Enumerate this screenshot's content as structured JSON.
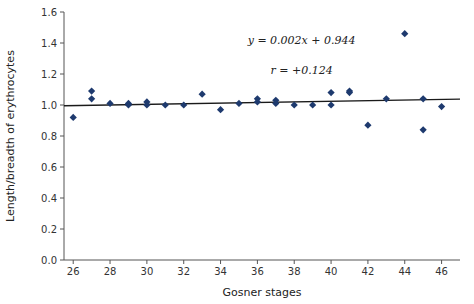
{
  "chart_data": {
    "type": "scatter",
    "xlabel": "Gosner stages",
    "ylabel": "Length/breadth of erythrocytes",
    "annotations": [
      "y = 0.002x + 0.944",
      "r = +0.124"
    ],
    "series": [
      {
        "type": "scatter",
        "marker": "diamond",
        "color": "#1e3a6e",
        "x": [
          26,
          27,
          27,
          28,
          29,
          29,
          30,
          30,
          31,
          32,
          33,
          34,
          35,
          36,
          36,
          37,
          37,
          38,
          39,
          40,
          40,
          41,
          41,
          42,
          43,
          44,
          45,
          45,
          46
        ],
        "values": [
          0.92,
          1.09,
          1.04,
          1.01,
          1.01,
          1.0,
          1.0,
          1.02,
          1.0,
          1.0,
          1.07,
          0.97,
          1.01,
          1.02,
          1.04,
          1.01,
          1.03,
          1.0,
          1.0,
          1.08,
          1.0,
          1.09,
          1.08,
          0.87,
          1.04,
          1.46,
          0.84,
          1.04,
          0.99
        ]
      },
      {
        "type": "line",
        "color": "#1a1a1a",
        "x": [
          25.5,
          47.0
        ],
        "values": [
          0.995,
          1.038
        ]
      }
    ],
    "xlim": [
      25.5,
      47.0
    ],
    "ylim": [
      0,
      1.6
    ],
    "xticks": [
      26,
      28,
      30,
      32,
      34,
      36,
      38,
      40,
      42,
      44,
      46
    ],
    "yticks": [
      {
        "value": 0,
        "label": "0.0"
      },
      0.2,
      0.4,
      0.6,
      0.8,
      {
        "value": 1.0,
        "label": "1.0"
      },
      1.2,
      1.4,
      1.6
    ],
    "grid": false
  }
}
